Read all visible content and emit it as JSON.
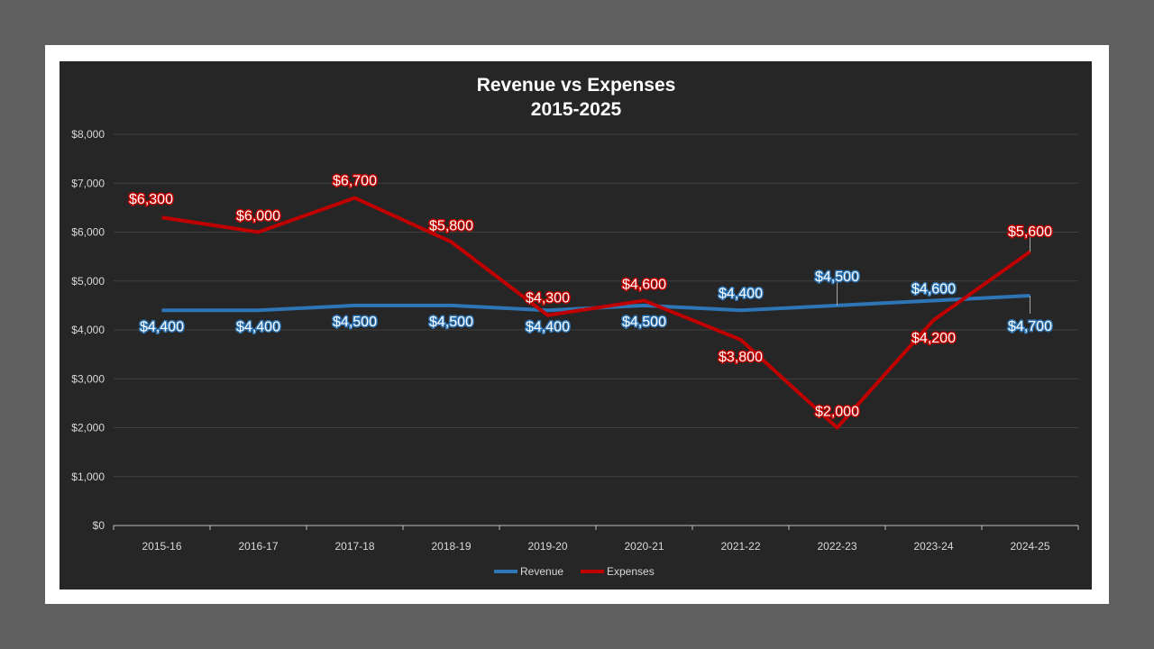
{
  "chart_data": {
    "type": "line",
    "title": "Revenue vs Expenses",
    "subtitle": "2015-2025",
    "xlabel": "",
    "ylabel": "",
    "categories": [
      "2015-16",
      "2016-17",
      "2017-18",
      "2018-19",
      "2019-20",
      "2020-21",
      "2021-22",
      "2022-23",
      "2023-24",
      "2024-25"
    ],
    "ylim": [
      0,
      8000
    ],
    "yticks": [
      0,
      1000,
      2000,
      3000,
      4000,
      5000,
      6000,
      7000,
      8000
    ],
    "ytick_labels": [
      "$0",
      "$1,000",
      "$2,000",
      "$3,000",
      "$4,000",
      "$5,000",
      "$6,000",
      "$7,000",
      "$8,000"
    ],
    "grid": true,
    "legend": "bottom",
    "series": [
      {
        "name": "Revenue",
        "color": "#2e75b6",
        "values": [
          4400,
          4400,
          4500,
          4500,
          4400,
          4500,
          4400,
          4500,
          4600,
          4700
        ],
        "labels": [
          "$4,400",
          "$4,400",
          "$4,500",
          "$4,500",
          "$4,400",
          "$4,500",
          "$4,400",
          "$4,500",
          "$4,600",
          "$4,700"
        ]
      },
      {
        "name": "Expenses",
        "color": "#c00000",
        "values": [
          6300,
          6000,
          6700,
          5800,
          4300,
          4600,
          3800,
          2000,
          4200,
          5600
        ],
        "labels": [
          "$6,300",
          "$6,000",
          "$6,700",
          "$5,800",
          "$4,300",
          "$4,600",
          "$3,800",
          "$2,000",
          "$4,200",
          "$5,600"
        ]
      }
    ]
  }
}
